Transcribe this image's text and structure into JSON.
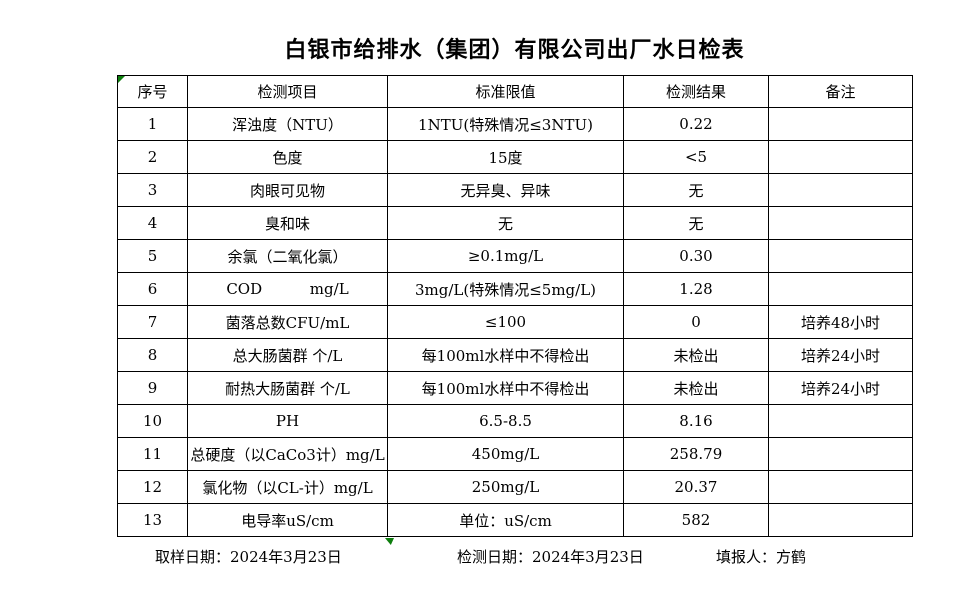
{
  "title": "白银市给排水（集团）有限公司出厂水日检表",
  "table": {
    "headers": [
      "序号",
      "检测项目",
      "标准限值",
      "检测结果",
      "备注"
    ],
    "rows": [
      {
        "no": "1",
        "item": "浑浊度（NTU）",
        "limit": "1NTU(特殊情况≤3NTU)",
        "result": "0.22",
        "note": ""
      },
      {
        "no": "2",
        "item": "色度",
        "limit": "15度",
        "result": "<5",
        "note": ""
      },
      {
        "no": "3",
        "item": "肉眼可见物",
        "limit": "无异臭、异味",
        "result": "无",
        "note": ""
      },
      {
        "no": "4",
        "item": "臭和味",
        "limit": "无",
        "result": "无",
        "note": ""
      },
      {
        "no": "5",
        "item": "余氯（二氧化氯）",
        "limit": "≥0.1mg/L",
        "result": "0.30",
        "note": ""
      },
      {
        "no": "6",
        "item": "COD          mg/L",
        "limit": "3mg/L(特殊情况≤5mg/L)",
        "result": "1.28",
        "note": ""
      },
      {
        "no": "7",
        "item": "菌落总数CFU/mL",
        "limit": "≤100",
        "result": "0",
        "note": "培养48小时"
      },
      {
        "no": "8",
        "item": "总大肠菌群 个/L",
        "limit": "每100ml水样中不得检出",
        "result": "未检出",
        "note": "培养24小时"
      },
      {
        "no": "9",
        "item": "耐热大肠菌群 个/L",
        "limit": "每100ml水样中不得检出",
        "result": "未检出",
        "note": "培养24小时"
      },
      {
        "no": "10",
        "item": "PH",
        "limit": "6.5-8.5",
        "result": "8.16",
        "note": ""
      },
      {
        "no": "11",
        "item": "总硬度（以CaCo3计）mg/L",
        "limit": "450mg/L",
        "result": "258.79",
        "note": ""
      },
      {
        "no": "12",
        "item": "氯化物（以CL-计）mg/L",
        "limit": "250mg/L",
        "result": "20.37",
        "note": ""
      },
      {
        "no": "13",
        "item": "电导率uS/cm",
        "limit": "单位：uS/cm",
        "result": "582",
        "note": ""
      }
    ]
  },
  "footer": {
    "sampling_date": "取样日期：2024年3月23日",
    "test_date": "检测日期：2024年3月23日",
    "reporter": "填报人：方鹤"
  },
  "icons": {
    "corner_marker": "excel-green-corner-triangle",
    "flag_marker": "excel-green-flag-triangle"
  },
  "colors": {
    "background": "#ffffff",
    "border": "#000000",
    "text": "#000000",
    "marker_green": "#0e7e0e"
  }
}
